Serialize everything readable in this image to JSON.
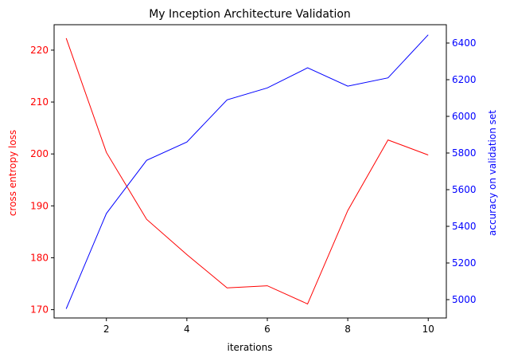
{
  "chart_data": {
    "type": "line",
    "title": "My Inception Architecture Validation",
    "xlabel": "iterations",
    "ylabel": "cross entropy loss",
    "y2label": "accuracy on validation set",
    "xlim": [
      0.7,
      10.45
    ],
    "ylim": [
      168.4,
      224.9
    ],
    "y2lim": [
      4900,
      6500
    ],
    "xticks": [
      2,
      4,
      6,
      8,
      10
    ],
    "yticks": [
      170,
      180,
      190,
      200,
      210,
      220
    ],
    "y2ticks": [
      5000,
      5200,
      5400,
      5600,
      5800,
      6000,
      6200,
      6400
    ],
    "grid": false,
    "x": [
      1,
      2,
      3,
      4,
      5,
      6,
      7,
      8,
      9,
      10
    ],
    "series": [
      {
        "axis": "left",
        "color": "#ff0000",
        "values": [
          222.3,
          200.3,
          187.4,
          180.6,
          174.2,
          174.6,
          171.1,
          189.1,
          202.7,
          199.8
        ]
      },
      {
        "axis": "right",
        "color": "#0000ff",
        "values": [
          4950,
          5470,
          5760,
          5860,
          6090,
          6155,
          6265,
          6165,
          6210,
          6445
        ]
      }
    ],
    "left_axis_color": "#ff0000",
    "right_axis_color": "#0000ff"
  }
}
